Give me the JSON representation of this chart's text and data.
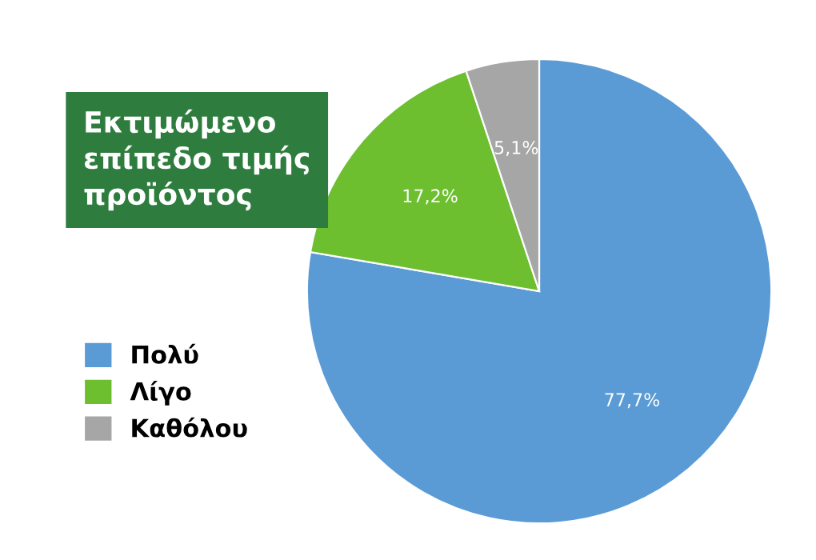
{
  "chart_data": {
    "type": "pie",
    "title": "Εκτιμώμενο\nεπίπεδο τιμής\nπροϊόντος",
    "categories": [
      "Πολύ",
      "Λίγο",
      "Καθόλου"
    ],
    "values": [
      77.7,
      17.2,
      5.1
    ],
    "value_labels": [
      "77,7%",
      "17,2%",
      "5,1%"
    ],
    "colors": [
      "#5b9bd5",
      "#6dbf2f",
      "#a6a6a6"
    ],
    "legend": "bottom left"
  }
}
